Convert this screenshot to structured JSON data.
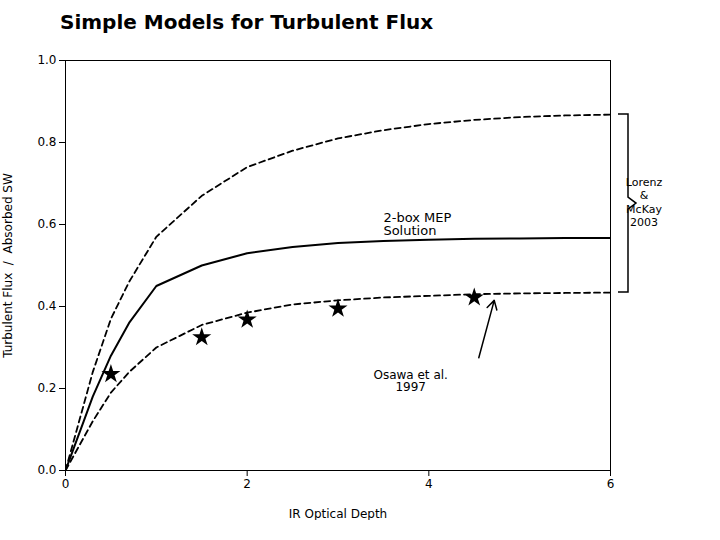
{
  "chart_data": {
    "type": "line",
    "title": "Simple Models for Turbulent Flux",
    "xlabel": "IR Optical Depth",
    "ylabel": "Turbulent Flux  /  Absorbed SW",
    "xlim": [
      0,
      6
    ],
    "ylim": [
      0.0,
      1.0
    ],
    "xticks": [
      0,
      2,
      4,
      6
    ],
    "yticks": [
      {
        "value": 0,
        "label": "0.0"
      },
      0.2,
      0.4,
      0.6,
      0.8,
      {
        "value": 1,
        "label": "1.0"
      }
    ],
    "series": [
      {
        "type": "line",
        "line_style": "dashed",
        "color": "black",
        "x": [
          0,
          0.1,
          0.2,
          0.3,
          0.5,
          0.7,
          1.0,
          1.5,
          2.0,
          2.5,
          3.0,
          3.5,
          4.0,
          4.5,
          5.0,
          5.5,
          6.0
        ],
        "values": [
          0.0,
          0.08,
          0.16,
          0.24,
          0.37,
          0.46,
          0.57,
          0.67,
          0.74,
          0.78,
          0.81,
          0.83,
          0.845,
          0.855,
          0.862,
          0.866,
          0.868
        ]
      },
      {
        "type": "line",
        "line_style": "solid",
        "color": "black",
        "x": [
          0,
          0.1,
          0.2,
          0.3,
          0.5,
          0.7,
          1.0,
          1.5,
          2.0,
          2.5,
          3.0,
          3.5,
          4.0,
          4.5,
          5.0,
          5.5,
          6.0
        ],
        "values": [
          0.0,
          0.06,
          0.12,
          0.18,
          0.28,
          0.36,
          0.45,
          0.5,
          0.53,
          0.545,
          0.555,
          0.56,
          0.563,
          0.565,
          0.566,
          0.567,
          0.567
        ]
      },
      {
        "type": "line",
        "line_style": "dashed",
        "color": "black",
        "x": [
          0,
          0.1,
          0.2,
          0.3,
          0.5,
          0.7,
          1.0,
          1.5,
          2.0,
          2.5,
          3.0,
          3.5,
          4.0,
          4.5,
          5.0,
          5.5,
          6.0
        ],
        "values": [
          0.0,
          0.04,
          0.08,
          0.12,
          0.19,
          0.24,
          0.3,
          0.355,
          0.385,
          0.405,
          0.415,
          0.422,
          0.426,
          0.43,
          0.432,
          0.433,
          0.434
        ]
      },
      {
        "type": "scatter",
        "marker": "star",
        "color": "black",
        "x": [
          0.5,
          1.5,
          2.0,
          3.0,
          4.5
        ],
        "values": [
          0.235,
          0.325,
          0.368,
          0.395,
          0.422
        ]
      }
    ],
    "annotations": [
      {
        "text": "2-box MEP\nSolution",
        "x": 3.5,
        "y": 0.575
      },
      {
        "text": "Osawa et al.\n1997",
        "x": 3.8,
        "y": 0.245
      }
    ],
    "arrows": [
      {
        "x1": 4.55,
        "y1": 0.275,
        "x2": 4.72,
        "y2": 0.415
      }
    ],
    "brackets": [
      {
        "text": "Lorenz\n&\nMcKay\n2003",
        "y1": 0.868,
        "y2": 0.434
      }
    ]
  }
}
